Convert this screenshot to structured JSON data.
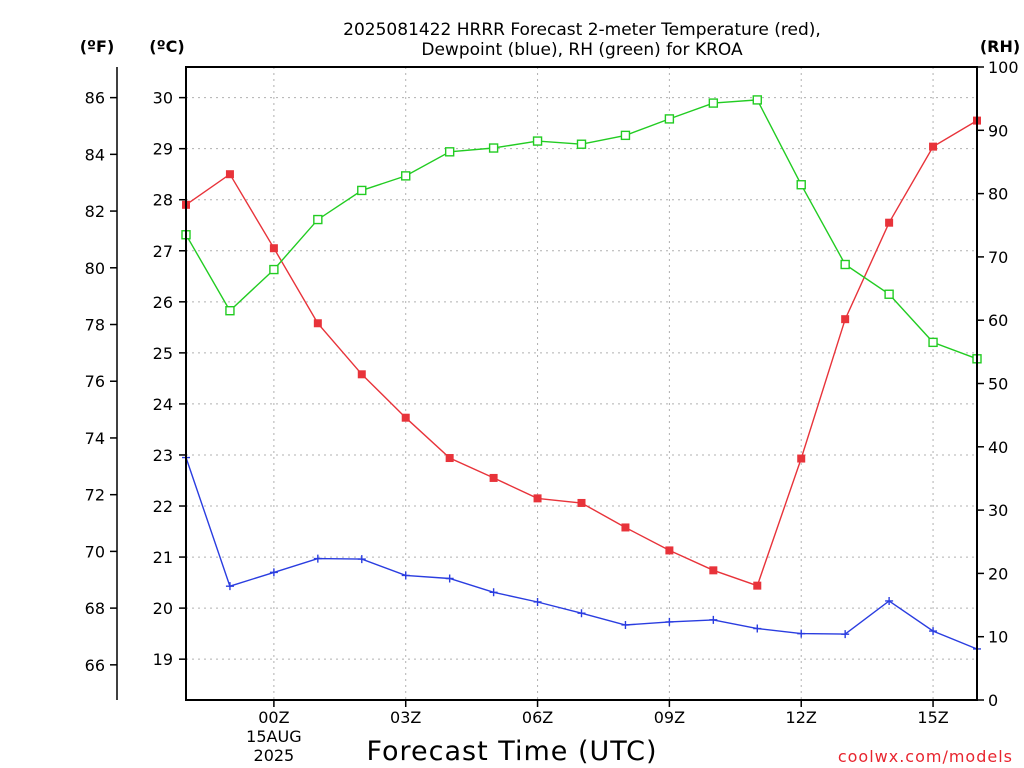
{
  "chart_data": {
    "type": "line",
    "title_line1": "2025081422 HRRR Forecast 2-meter Temperature (red),",
    "title_line2": "Dewpoint (blue), RH (green) for KROA",
    "xlabel": "Forecast Time (UTC)",
    "credit": "coolwx.com/models",
    "units": {
      "fahrenheit": "(ºF)",
      "celsius": "(ºC)",
      "rh": "(RH)"
    },
    "x_hours": [
      -2,
      -1,
      0,
      1,
      2,
      3,
      4,
      5,
      6,
      7,
      8,
      9,
      10,
      11,
      12,
      13,
      14,
      15,
      16
    ],
    "x_range": [
      -2,
      16
    ],
    "x_ticks": [
      {
        "hour": 0,
        "label": "00Z",
        "sub1": "15AUG",
        "sub2": "2025"
      },
      {
        "hour": 3,
        "label": "03Z",
        "sub1": "",
        "sub2": ""
      },
      {
        "hour": 6,
        "label": "06Z",
        "sub1": "",
        "sub2": ""
      },
      {
        "hour": 9,
        "label": "09Z",
        "sub1": "",
        "sub2": ""
      },
      {
        "hour": 12,
        "label": "12Z",
        "sub1": "",
        "sub2": ""
      },
      {
        "hour": 15,
        "label": "15Z",
        "sub1": "",
        "sub2": ""
      }
    ],
    "celsius_range": [
      18.2,
      30.6
    ],
    "celsius_ticks": [
      "19",
      "20",
      "21",
      "22",
      "23",
      "24",
      "25",
      "26",
      "27",
      "28",
      "29",
      "30"
    ],
    "fahrenheit_range": [
      64.76,
      87.08
    ],
    "fahrenheit_ticks": [
      "66",
      "68",
      "70",
      "72",
      "74",
      "76",
      "78",
      "80",
      "82",
      "84",
      "86"
    ],
    "rh_range": [
      0,
      100
    ],
    "rh_ticks": [
      "0",
      "10",
      "20",
      "30",
      "40",
      "50",
      "60",
      "70",
      "80",
      "90",
      "100"
    ],
    "grid": true,
    "series": [
      {
        "name": "Temperature",
        "axis": "celsius",
        "color": "#e8333a",
        "marker": "filled-square",
        "values": [
          27.9,
          28.5,
          27.05,
          25.58,
          24.58,
          23.73,
          22.94,
          22.55,
          22.15,
          22.06,
          21.58,
          21.13,
          20.74,
          20.44,
          22.93,
          25.66,
          27.55,
          29.04,
          29.55
        ]
      },
      {
        "name": "Dewpoint",
        "axis": "celsius",
        "color": "#2a3de0",
        "marker": "plus",
        "values": [
          22.95,
          20.43,
          20.7,
          20.97,
          20.96,
          20.64,
          20.58,
          20.31,
          20.12,
          19.9,
          19.67,
          19.73,
          19.77,
          19.6,
          19.5,
          19.49,
          20.14,
          19.55,
          19.2
        ]
      },
      {
        "name": "RH",
        "axis": "rh",
        "color": "#22cc22",
        "marker": "open-square",
        "values": [
          73.5,
          61.5,
          68.0,
          75.9,
          80.5,
          82.8,
          86.6,
          87.2,
          88.3,
          87.8,
          89.2,
          91.8,
          94.3,
          94.8,
          81.4,
          68.8,
          64.1,
          56.5,
          53.9
        ]
      }
    ]
  }
}
